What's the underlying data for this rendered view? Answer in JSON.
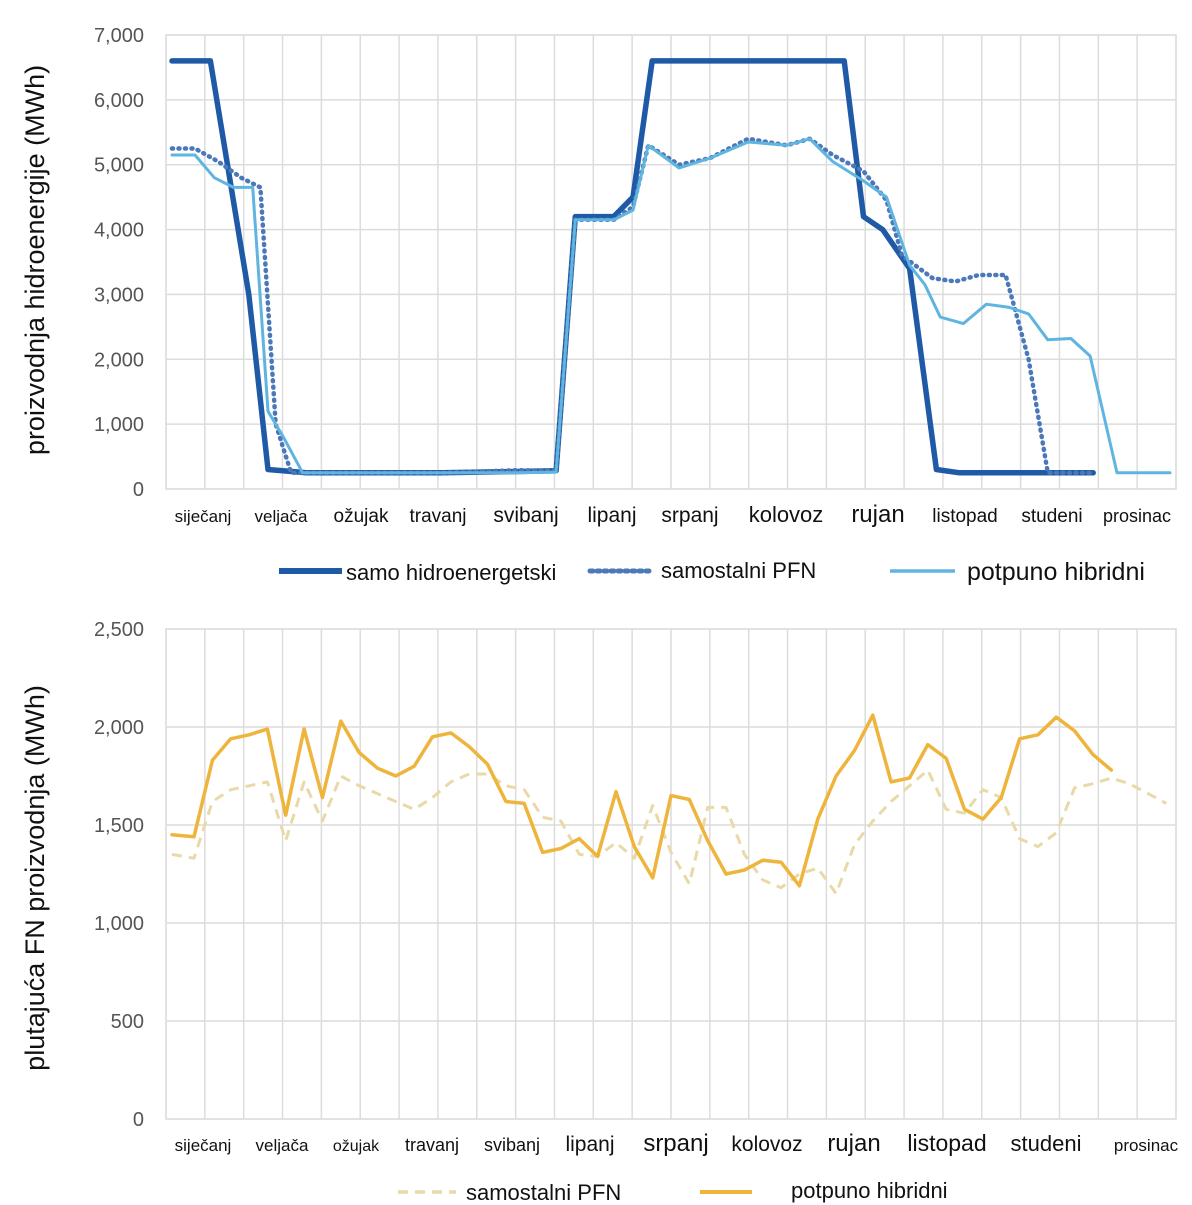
{
  "chart_data": [
    {
      "type": "line",
      "ylabel": "proizvodnja hidroenergije (MWh)",
      "ylim": [
        0,
        7000
      ],
      "yticks": [
        "0",
        "1,000",
        "2,000",
        "3,000",
        "4,000",
        "5,000",
        "6,000",
        "7,000"
      ],
      "categories": [
        "siječanj",
        "veljača",
        "ožujak",
        "travanj",
        "svibanj",
        "lipanj",
        "srpanj",
        "kolovoz",
        "rujan",
        "listopad",
        "studeni",
        "prosinac"
      ],
      "grid": true,
      "legend_position": "bottom",
      "series": [
        {
          "name": "samo hidroenergetski",
          "color": "#1f5aa6",
          "style": "solid-thick",
          "points": [
            [
              0.0,
              6600
            ],
            [
              0.5,
              6600
            ],
            [
              1.0,
              3000
            ],
            [
              1.25,
              300
            ],
            [
              1.75,
              250
            ],
            [
              2.5,
              250
            ],
            [
              3.5,
              250
            ],
            [
              4.5,
              270
            ],
            [
              5.0,
              280
            ],
            [
              5.25,
              4200
            ],
            [
              5.75,
              4200
            ],
            [
              6.0,
              4500
            ],
            [
              6.25,
              6600
            ],
            [
              7.0,
              6600
            ],
            [
              8.0,
              6600
            ],
            [
              8.75,
              6600
            ],
            [
              9.0,
              4200
            ],
            [
              9.25,
              4000
            ],
            [
              9.6,
              3400
            ],
            [
              9.95,
              300
            ],
            [
              10.25,
              250
            ],
            [
              11.0,
              250
            ],
            [
              11.99,
              250
            ]
          ]
        },
        {
          "name": "samostalni PFN",
          "color": "#4a78b8",
          "style": "dotted",
          "points": [
            [
              0.0,
              5250
            ],
            [
              0.3,
              5250
            ],
            [
              0.6,
              5050
            ],
            [
              0.9,
              4800
            ],
            [
              1.15,
              4650
            ],
            [
              1.35,
              1000
            ],
            [
              1.55,
              250
            ],
            [
              2.5,
              250
            ],
            [
              3.5,
              250
            ],
            [
              4.5,
              290
            ],
            [
              5.0,
              280
            ],
            [
              5.25,
              4150
            ],
            [
              5.75,
              4150
            ],
            [
              6.0,
              4350
            ],
            [
              6.2,
              5300
            ],
            [
              6.6,
              5000
            ],
            [
              7.0,
              5100
            ],
            [
              7.5,
              5400
            ],
            [
              8.0,
              5300
            ],
            [
              8.3,
              5400
            ],
            [
              8.6,
              5150
            ],
            [
              9.0,
              4900
            ],
            [
              9.3,
              4450
            ],
            [
              9.5,
              3600
            ],
            [
              9.9,
              3250
            ],
            [
              10.2,
              3200
            ],
            [
              10.5,
              3300
            ],
            [
              10.85,
              3300
            ],
            [
              11.15,
              2000
            ],
            [
              11.4,
              250
            ],
            [
              11.99,
              250
            ]
          ]
        },
        {
          "name": "potpuno hibridni",
          "color": "#5fb5e0",
          "style": "solid",
          "points": [
            [
              0.0,
              5150
            ],
            [
              0.3,
              5150
            ],
            [
              0.55,
              4800
            ],
            [
              0.8,
              4650
            ],
            [
              1.05,
              4650
            ],
            [
              1.25,
              1200
            ],
            [
              1.45,
              800
            ],
            [
              1.7,
              250
            ],
            [
              2.5,
              250
            ],
            [
              3.5,
              250
            ],
            [
              4.5,
              250
            ],
            [
              5.0,
              260
            ],
            [
              5.25,
              4150
            ],
            [
              5.75,
              4150
            ],
            [
              6.0,
              4300
            ],
            [
              6.2,
              5300
            ],
            [
              6.6,
              4950
            ],
            [
              7.0,
              5100
            ],
            [
              7.5,
              5350
            ],
            [
              8.0,
              5300
            ],
            [
              8.3,
              5400
            ],
            [
              8.6,
              5050
            ],
            [
              9.0,
              4750
            ],
            [
              9.3,
              4500
            ],
            [
              9.6,
              3450
            ],
            [
              9.8,
              3150
            ],
            [
              10.0,
              2650
            ],
            [
              10.3,
              2550
            ],
            [
              10.6,
              2850
            ],
            [
              10.9,
              2800
            ],
            [
              11.15,
              2700
            ],
            [
              11.4,
              2300
            ],
            [
              11.7,
              2320
            ],
            [
              11.95,
              2050
            ],
            [
              12.3,
              250
            ],
            [
              12.99,
              250
            ]
          ]
        }
      ]
    },
    {
      "type": "line",
      "ylabel": "plutajuća FN proizvodnja (MWh)",
      "ylim": [
        0,
        2500
      ],
      "yticks": [
        "0",
        "500",
        "1,000",
        "1,500",
        "2,000",
        "2,500"
      ],
      "categories": [
        "siječanj",
        "veljača",
        "ožujak",
        "travanj",
        "svibanj",
        "lipanj",
        "srpanj",
        "kolovoz",
        "rujan",
        "listopad",
        "studeni",
        "prosinac"
      ],
      "grid": true,
      "legend_position": "bottom",
      "series": [
        {
          "name": "samostalni PFN",
          "color": "#ead9a8",
          "style": "dashed",
          "points": [
            [
              0.0,
              1350
            ],
            [
              0.3,
              1330
            ],
            [
              0.55,
              1620
            ],
            [
              0.8,
              1680
            ],
            [
              1.05,
              1700
            ],
            [
              1.3,
              1720
            ],
            [
              1.55,
              1420
            ],
            [
              1.8,
              1720
            ],
            [
              2.05,
              1520
            ],
            [
              2.3,
              1750
            ],
            [
              2.55,
              1700
            ],
            [
              2.8,
              1660
            ],
            [
              3.05,
              1620
            ],
            [
              3.3,
              1580
            ],
            [
              3.55,
              1640
            ],
            [
              3.8,
              1720
            ],
            [
              4.05,
              1760
            ],
            [
              4.3,
              1760
            ],
            [
              4.55,
              1700
            ],
            [
              4.8,
              1680
            ],
            [
              5.05,
              1540
            ],
            [
              5.3,
              1520
            ],
            [
              5.55,
              1350
            ],
            [
              5.8,
              1340
            ],
            [
              6.05,
              1410
            ],
            [
              6.3,
              1330
            ],
            [
              6.55,
              1600
            ],
            [
              6.8,
              1360
            ],
            [
              7.05,
              1200
            ],
            [
              7.3,
              1590
            ],
            [
              7.55,
              1590
            ],
            [
              7.8,
              1350
            ],
            [
              8.05,
              1220
            ],
            [
              8.3,
              1180
            ],
            [
              8.55,
              1250
            ],
            [
              8.8,
              1280
            ],
            [
              9.05,
              1150
            ],
            [
              9.3,
              1400
            ],
            [
              9.55,
              1520
            ],
            [
              9.8,
              1620
            ],
            [
              10.05,
              1700
            ],
            [
              10.3,
              1780
            ],
            [
              10.55,
              1580
            ],
            [
              10.8,
              1560
            ],
            [
              11.05,
              1680
            ],
            [
              11.3,
              1640
            ],
            [
              11.55,
              1430
            ],
            [
              11.8,
              1390
            ],
            [
              12.05,
              1460
            ],
            [
              12.3,
              1690
            ],
            [
              12.55,
              1710
            ],
            [
              12.8,
              1740
            ],
            [
              13.05,
              1710
            ],
            [
              13.3,
              1660
            ],
            [
              13.55,
              1610
            ]
          ]
        },
        {
          "name": "potpuno hibridni",
          "color": "#efb43c",
          "style": "solid",
          "points": [
            [
              0.0,
              1450
            ],
            [
              0.3,
              1440
            ],
            [
              0.55,
              1830
            ],
            [
              0.8,
              1940
            ],
            [
              1.05,
              1960
            ],
            [
              1.3,
              1990
            ],
            [
              1.55,
              1550
            ],
            [
              1.8,
              1990
            ],
            [
              2.05,
              1640
            ],
            [
              2.3,
              2030
            ],
            [
              2.55,
              1870
            ],
            [
              2.8,
              1790
            ],
            [
              3.05,
              1750
            ],
            [
              3.3,
              1800
            ],
            [
              3.55,
              1950
            ],
            [
              3.8,
              1970
            ],
            [
              4.05,
              1900
            ],
            [
              4.3,
              1810
            ],
            [
              4.55,
              1620
            ],
            [
              4.8,
              1610
            ],
            [
              5.05,
              1360
            ],
            [
              5.3,
              1380
            ],
            [
              5.55,
              1430
            ],
            [
              5.8,
              1340
            ],
            [
              6.05,
              1670
            ],
            [
              6.3,
              1390
            ],
            [
              6.55,
              1230
            ],
            [
              6.8,
              1650
            ],
            [
              7.05,
              1630
            ],
            [
              7.3,
              1420
            ],
            [
              7.55,
              1250
            ],
            [
              7.8,
              1270
            ],
            [
              8.05,
              1320
            ],
            [
              8.3,
              1310
            ],
            [
              8.55,
              1190
            ],
            [
              8.8,
              1530
            ],
            [
              9.05,
              1750
            ],
            [
              9.3,
              1880
            ],
            [
              9.55,
              2060
            ],
            [
              9.8,
              1720
            ],
            [
              10.05,
              1740
            ],
            [
              10.3,
              1910
            ],
            [
              10.55,
              1840
            ],
            [
              10.8,
              1580
            ],
            [
              11.05,
              1530
            ],
            [
              11.3,
              1640
            ],
            [
              11.55,
              1940
            ],
            [
              11.8,
              1960
            ],
            [
              12.05,
              2050
            ],
            [
              12.3,
              1980
            ],
            [
              12.55,
              1860
            ],
            [
              12.8,
              1780
            ]
          ]
        }
      ]
    }
  ]
}
